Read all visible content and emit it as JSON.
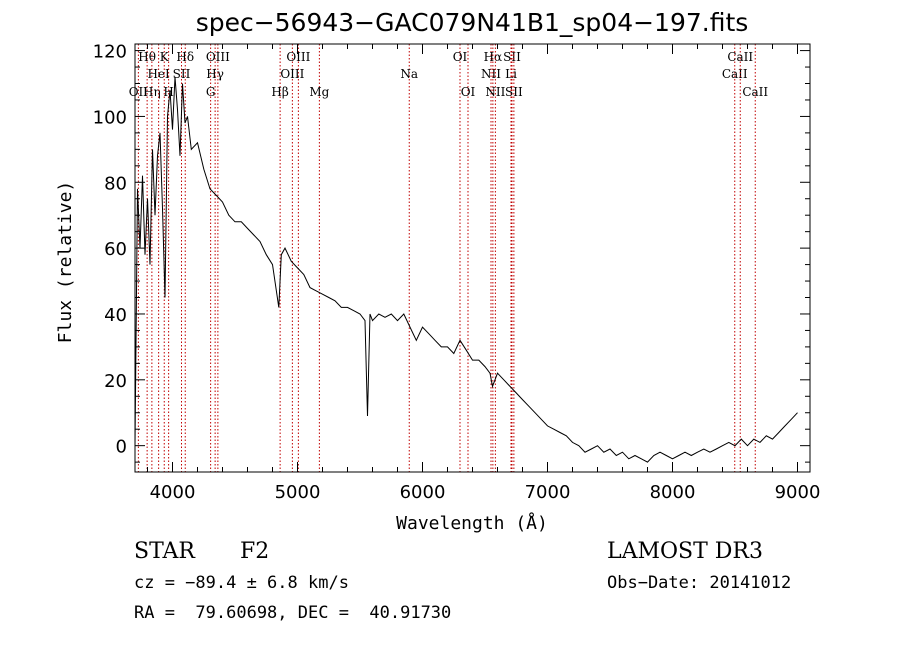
{
  "chart_data": {
    "type": "line",
    "title": "spec−56943−GAC079N41B1_sp04−197.fits",
    "xlabel": "Wavelength (Å)",
    "ylabel": "Flux (relative)",
    "xlim": [
      3700,
      9100
    ],
    "ylim": [
      -8,
      122
    ],
    "xticks": [
      4000,
      5000,
      6000,
      7000,
      8000,
      9000
    ],
    "yticks": [
      0,
      20,
      40,
      60,
      80,
      100,
      120
    ],
    "grid": false,
    "series": [
      {
        "x": [
          3700,
          3720,
          3740,
          3760,
          3780,
          3800,
          3820,
          3840,
          3860,
          3880,
          3900,
          3920,
          3940,
          3960,
          3980,
          4000,
          4020,
          4040,
          4060,
          4080,
          4100,
          4120,
          4150,
          4200,
          4250,
          4300,
          4350,
          4400,
          4450,
          4500,
          4550,
          4600,
          4650,
          4700,
          4750,
          4800,
          4850,
          4870,
          4900,
          4950,
          5000,
          5050,
          5100,
          5150,
          5200,
          5250,
          5300,
          5350,
          5400,
          5450,
          5500,
          5540,
          5560,
          5580,
          5600,
          5650,
          5700,
          5750,
          5800,
          5850,
          5900,
          5950,
          6000,
          6050,
          6100,
          6150,
          6200,
          6250,
          6300,
          6350,
          6400,
          6450,
          6500,
          6540,
          6560,
          6580,
          6600,
          6650,
          6700,
          6750,
          6800,
          6850,
          6900,
          6950,
          7000,
          7050,
          7100,
          7150,
          7200,
          7250,
          7300,
          7350,
          7400,
          7450,
          7500,
          7550,
          7600,
          7650,
          7700,
          7750,
          7800,
          7850,
          7900,
          7950,
          8000,
          8050,
          8100,
          8150,
          8200,
          8250,
          8300,
          8350,
          8400,
          8450,
          8500,
          8550,
          8600,
          8650,
          8700,
          8750,
          8800,
          8850,
          8900,
          8950,
          9000
        ],
        "y": [
          0,
          78,
          60,
          82,
          58,
          75,
          55,
          90,
          70,
          88,
          95,
          72,
          45,
          100,
          108,
          96,
          112,
          102,
          88,
          110,
          98,
          100,
          90,
          92,
          84,
          78,
          76,
          74,
          70,
          68,
          68,
          66,
          64,
          62,
          58,
          55,
          42,
          58,
          60,
          56,
          54,
          52,
          48,
          47,
          46,
          45,
          44,
          42,
          42,
          41,
          40,
          38,
          9,
          40,
          38,
          40,
          39,
          40,
          38,
          40,
          36,
          32,
          36,
          34,
          32,
          30,
          30,
          28,
          32,
          29,
          26,
          26,
          24,
          22,
          18,
          20,
          22,
          20,
          18,
          16,
          14,
          12,
          10,
          8,
          6,
          5,
          4,
          3,
          1,
          0,
          -2,
          -1,
          0,
          -2,
          -1,
          -3,
          -2,
          -4,
          -3,
          -4,
          -5,
          -3,
          -2,
          -3,
          -4,
          -3,
          -2,
          -3,
          -2,
          -1,
          -2,
          -1,
          0,
          1,
          0,
          2,
          0,
          2,
          1,
          3,
          2,
          4,
          6,
          8,
          10
        ]
      }
    ],
    "lines": [
      {
        "label": "Hθ",
        "x": 3797,
        "row": 1
      },
      {
        "label": "OII",
        "x": 3727,
        "row": 3
      },
      {
        "label": "Hη",
        "x": 3835,
        "row": 3
      },
      {
        "label": "HeI",
        "x": 3889,
        "row": 2
      },
      {
        "label": "K",
        "x": 3934,
        "row": 1
      },
      {
        "label": "H",
        "x": 3969,
        "row": 3
      },
      {
        "label": "SII",
        "x": 4072,
        "row": 2
      },
      {
        "label": "Hδ",
        "x": 4102,
        "row": 1
      },
      {
        "label": "G",
        "x": 4305,
        "row": 3
      },
      {
        "label": "Hγ",
        "x": 4341,
        "row": 2
      },
      {
        "label": "OIII",
        "x": 4363,
        "row": 1
      },
      {
        "label": "Hβ",
        "x": 4861,
        "row": 3
      },
      {
        "label": "OIII",
        "x": 4959,
        "row": 2
      },
      {
        "label": "OIII",
        "x": 5007,
        "row": 1
      },
      {
        "label": "Mg",
        "x": 5175,
        "row": 3
      },
      {
        "label": "Na",
        "x": 5894,
        "row": 2
      },
      {
        "label": "OI",
        "x": 6300,
        "row": 1
      },
      {
        "label": "OI",
        "x": 6364,
        "row": 3
      },
      {
        "label": "NII",
        "x": 6548,
        "row": 2
      },
      {
        "label": "Hα",
        "x": 6563,
        "row": 1
      },
      {
        "label": "NII",
        "x": 6583,
        "row": 3
      },
      {
        "label": "Li",
        "x": 6708,
        "row": 2
      },
      {
        "label": "SII",
        "x": 6716,
        "row": 1
      },
      {
        "label": "SII",
        "x": 6731,
        "row": 3
      },
      {
        "label": "CaII",
        "x": 8498,
        "row": 2
      },
      {
        "label": "CaII",
        "x": 8542,
        "row": 1
      },
      {
        "label": "CaII",
        "x": 8662,
        "row": 3
      }
    ]
  },
  "info": {
    "class": "STAR",
    "subclass": "F2",
    "survey": "LAMOST DR3",
    "cz": "cz = −89.4 ± 6.8 km/s",
    "obsdate": "Obs−Date: 20141012",
    "radec": "RA =  79.60698, DEC =  40.91730"
  },
  "colors": {
    "spectrum": "#000000",
    "line_marker": "#c00000",
    "axis": "#000000"
  }
}
